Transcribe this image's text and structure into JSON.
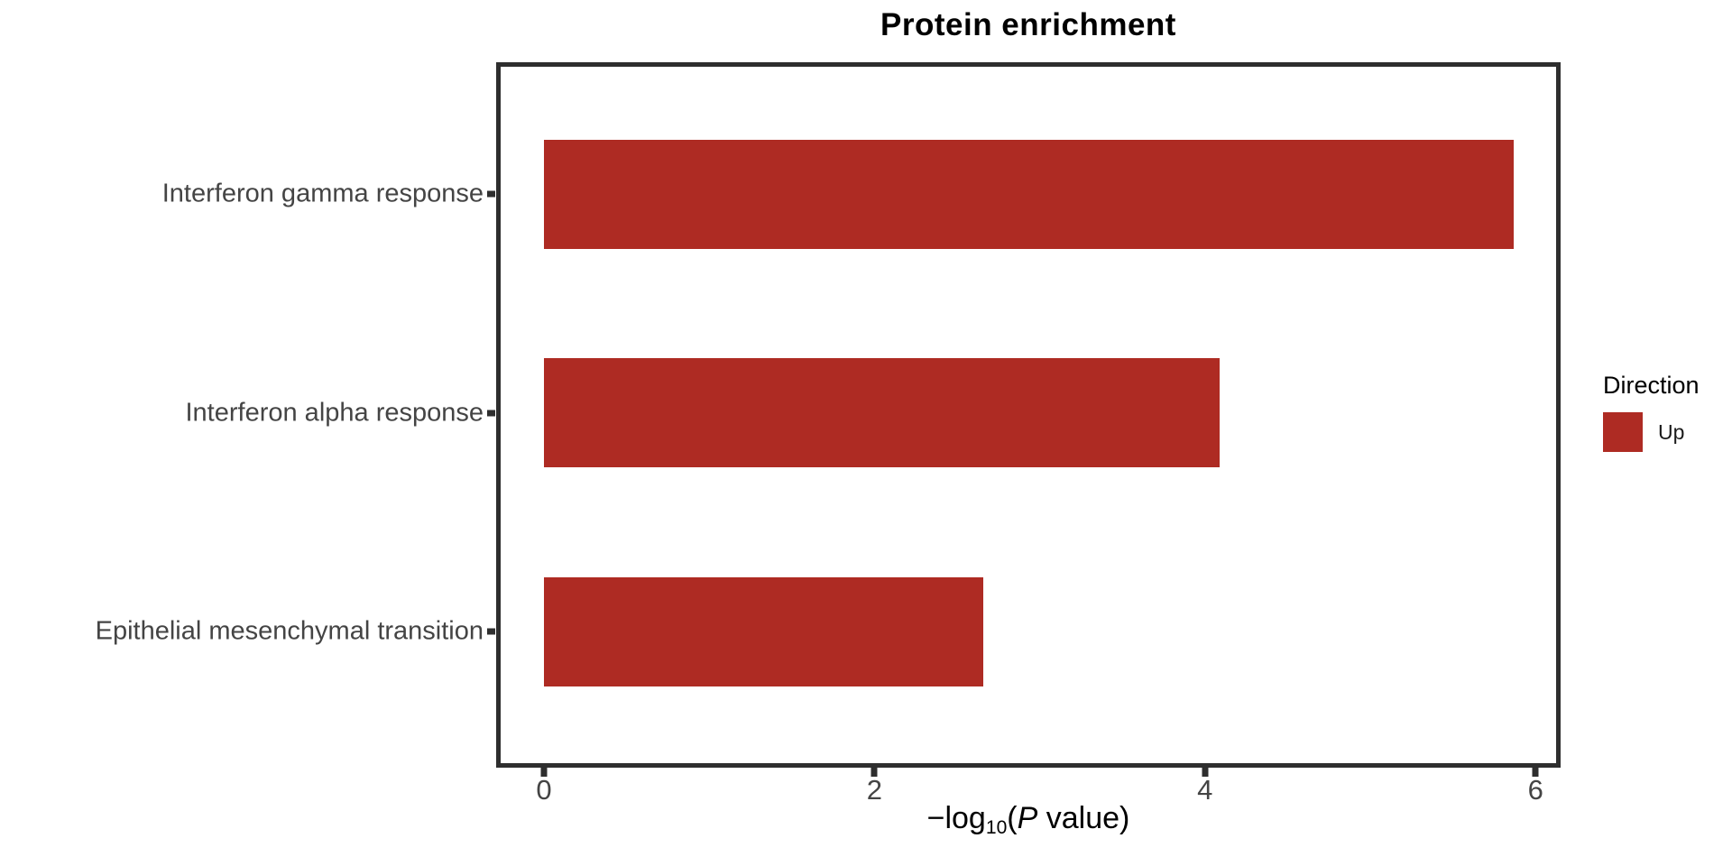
{
  "chart_data": {
    "type": "bar",
    "orientation": "horizontal",
    "title": "Protein enrichment",
    "categories": [
      "Interferon gamma response",
      "Interferon alpha response",
      "Epithelial mesenchymal transition"
    ],
    "values": [
      5.87,
      4.09,
      2.66
    ],
    "series": [
      {
        "name": "Up",
        "values": [
          5.87,
          4.09,
          2.66
        ]
      }
    ],
    "xlabel": "-log10(P value)",
    "xlabel_parts": {
      "prefix": "−log",
      "subscript": "10",
      "open_paren": "(",
      "italic": "P",
      "suffix": " value)"
    },
    "x_ticks": [
      "0",
      "2",
      "4",
      "6"
    ],
    "x_tick_values": [
      0,
      2,
      4,
      6
    ],
    "xlim": [
      -0.26,
      6.13
    ],
    "ylim_categories": 3,
    "grid": false,
    "bar_color": "#AE2B23",
    "axis_text_color": "#444444",
    "panel_border_color": "#2e2e2e",
    "legend": {
      "position": "right",
      "title": "Direction",
      "entries": [
        {
          "label": "Up",
          "color": "#AE2B23"
        }
      ]
    }
  }
}
